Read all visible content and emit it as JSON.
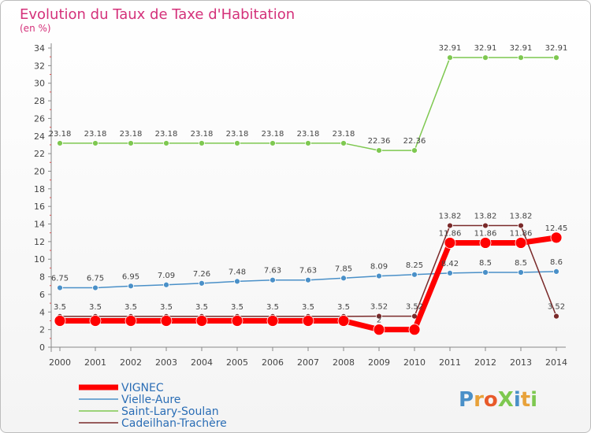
{
  "chart_data": {
    "type": "line",
    "title": "Evolution du Taux de Taxe d'Habitation",
    "subtitle": "(en %)",
    "xlabel": "",
    "ylabel": "",
    "ylim": [
      0,
      34
    ],
    "ytick_step": 2,
    "grid": false,
    "legend_position": "bottom-left",
    "categories": [
      "2000",
      "2001",
      "2002",
      "2003",
      "2004",
      "2005",
      "2006",
      "2007",
      "2008",
      "2009",
      "2010",
      "2011",
      "2012",
      "2013",
      "2014"
    ],
    "series": [
      {
        "name": "VIGNEC",
        "color": "#ff0000",
        "values": [
          3.0,
          3.0,
          3.0,
          3.0,
          3.0,
          3.0,
          3.0,
          3.0,
          3.0,
          2.0,
          2.0,
          11.86,
          11.86,
          11.86,
          12.45
        ],
        "labels": [
          "",
          "",
          "",
          "",
          "",
          "",
          "",
          "",
          "",
          "2",
          "",
          "11.86",
          "11.86",
          "11.86",
          "12.45"
        ]
      },
      {
        "name": "Vielle-Aure",
        "color": "#4a90c8",
        "values": [
          6.75,
          6.75,
          6.95,
          7.09,
          7.26,
          7.48,
          7.63,
          7.63,
          7.85,
          8.09,
          8.25,
          8.42,
          8.5,
          8.5,
          8.6
        ],
        "labels": [
          "6.75",
          "6.75",
          "6.95",
          "7.09",
          "7.26",
          "7.48",
          "7.63",
          "7.63",
          "7.85",
          "8.09",
          "8.25",
          "8.42",
          "8.5",
          "8.5",
          "8.6"
        ]
      },
      {
        "name": "Saint-Lary-Soulan",
        "color": "#7ec850",
        "values": [
          23.18,
          23.18,
          23.18,
          23.18,
          23.18,
          23.18,
          23.18,
          23.18,
          23.18,
          22.36,
          22.36,
          32.91,
          32.91,
          32.91,
          32.91
        ],
        "labels": [
          "23.18",
          "23.18",
          "23.18",
          "23.18",
          "23.18",
          "23.18",
          "23.18",
          "23.18",
          "23.18",
          "22.36",
          "22.36",
          "32.91",
          "32.91",
          "32.91",
          "32.91"
        ]
      },
      {
        "name": "Cadeilhan-Trachère",
        "color": "#7a2a2a",
        "values": [
          3.5,
          3.5,
          3.5,
          3.5,
          3.5,
          3.5,
          3.5,
          3.5,
          3.5,
          3.52,
          3.52,
          13.82,
          13.82,
          13.82,
          3.52
        ],
        "labels": [
          "3.5",
          "3.5",
          "3.5",
          "3.5",
          "3.5",
          "3.5",
          "3.5",
          "3.5",
          "3.5",
          "3.52",
          "3.52",
          "13.82",
          "13.82",
          "13.82",
          "3.52"
        ]
      }
    ]
  },
  "watermark": {
    "text": "ProXiti",
    "colors": [
      "#4a90c8",
      "#e8a23a",
      "#e85a2a",
      "#7ec850",
      "#4a90c8",
      "#e8a23a",
      "#7ec850"
    ]
  }
}
